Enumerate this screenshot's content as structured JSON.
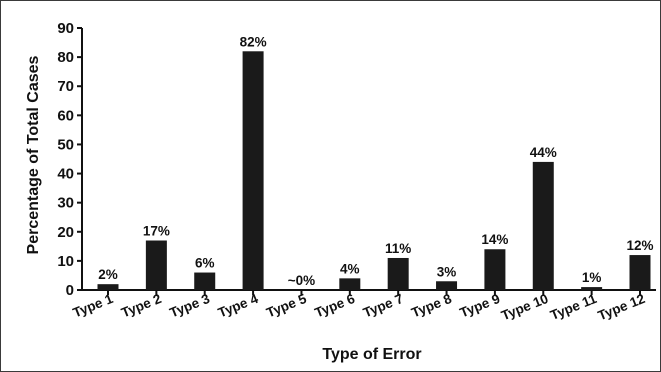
{
  "chart_data": {
    "type": "bar",
    "title": "",
    "xlabel": "Type of Error",
    "ylabel": "Percentage of Total Cases",
    "ylim": [
      0,
      90
    ],
    "yticks": [
      0,
      10,
      20,
      30,
      40,
      50,
      60,
      70,
      80,
      90
    ],
    "grid": false,
    "categories": [
      "Type 1",
      "Type 2",
      "Type 3",
      "Type 4",
      "Type 5",
      "Type 6",
      "Type 7",
      "Type 8",
      "Type 9",
      "Type 10",
      "Type 11",
      "Type 12"
    ],
    "values": [
      2,
      17,
      6,
      82,
      0,
      4,
      11,
      3,
      14,
      44,
      1,
      12
    ],
    "data_labels": [
      "2%",
      "17%",
      "6%",
      "82%",
      "~0%",
      "4%",
      "11%",
      "3%",
      "14%",
      "44%",
      "1%",
      "12%"
    ],
    "bar_color": "#1a1a1a"
  }
}
